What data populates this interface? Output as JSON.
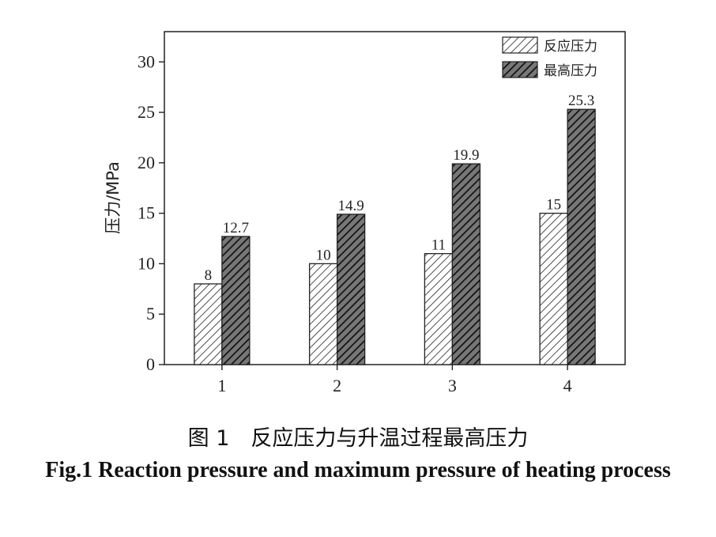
{
  "chart_data": {
    "type": "bar",
    "categories": [
      "1",
      "2",
      "3",
      "4"
    ],
    "series": [
      {
        "name": "反应压力",
        "values": [
          8,
          10,
          11,
          15
        ],
        "pattern": "light-hatch"
      },
      {
        "name": "最高压力",
        "values": [
          12.7,
          14.9,
          19.9,
          25.3
        ],
        "pattern": "dark-hatch"
      }
    ],
    "data_labels": [
      [
        "8",
        "10",
        "11",
        "15"
      ],
      [
        "12.7",
        "14.9",
        "19.9",
        "25.3"
      ]
    ],
    "ylabel": "压力/MPa",
    "xlabel": "",
    "ylim": [
      0,
      33
    ],
    "yticks": [
      0,
      5,
      10,
      15,
      20,
      25,
      30
    ],
    "legend_position": "top-right",
    "grid": false
  },
  "caption": {
    "chinese": "图 1　反应压力与升温过程最高压力",
    "english": "Fig.1 Reaction pressure and maximum pressure of heating process"
  }
}
